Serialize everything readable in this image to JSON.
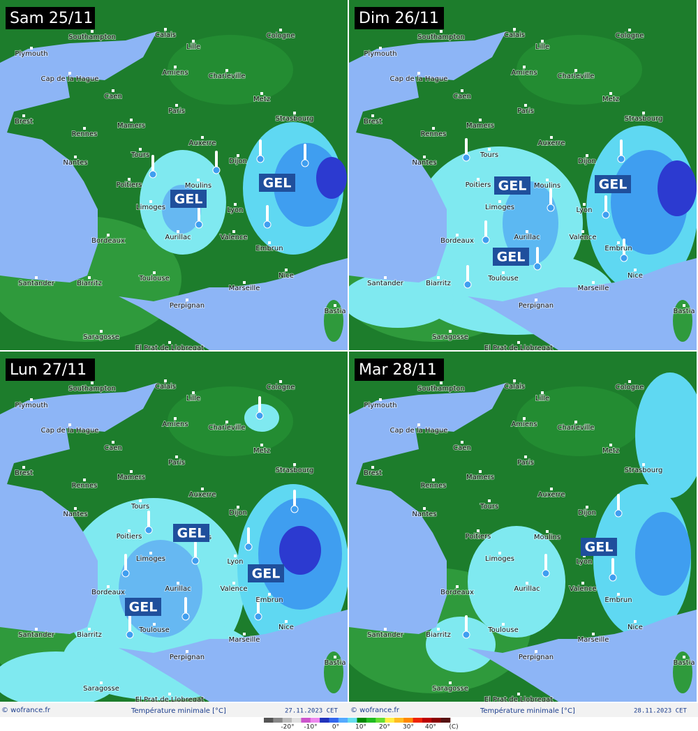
{
  "panels": [
    {
      "title": "Sam 25/11",
      "gel": [
        "GEL",
        "GEL"
      ]
    },
    {
      "title": "Dim 26/11",
      "gel": [
        "GEL",
        "GEL",
        "GEL"
      ]
    },
    {
      "title": "Lun 27/11",
      "gel": [
        "GEL",
        "GEL",
        "GEL"
      ]
    },
    {
      "title": "Mar 28/11",
      "gel": [
        "GEL"
      ]
    }
  ],
  "cities": [
    "Southampton",
    "Plymouth",
    "Calais",
    "Cologne",
    "Lille",
    "Amiens",
    "Charleville",
    "Cap de la Hague",
    "Caen",
    "Metz",
    "Paris",
    "Brest",
    "Strasbourg",
    "Mamers",
    "Rennes",
    "Auxerre",
    "Tours",
    "Nantes",
    "Dijon",
    "Poitiers",
    "Moulins",
    "Limoges",
    "Lyon",
    "Aurillac",
    "Bordeaux",
    "Valence",
    "Embrun",
    "Toulouse",
    "Nice",
    "Santander",
    "Biarritz",
    "Marseille",
    "Perpignan",
    "Bastia",
    "Saragosse",
    "El Prat de Llobregat"
  ],
  "footers": [
    {
      "credit": "© wofrance.fr",
      "caption": "Température minimale [°C]",
      "date": "27.11.2023  CET"
    },
    {
      "credit": "© wofrance.fr",
      "caption": "Température minimale [°C]",
      "date": "28.11.2023  CET"
    }
  ],
  "scale": {
    "labels": [
      "-20°",
      "-10°",
      "0°",
      "10°",
      "20°",
      "30°",
      "40°"
    ],
    "unit": "(C)"
  }
}
